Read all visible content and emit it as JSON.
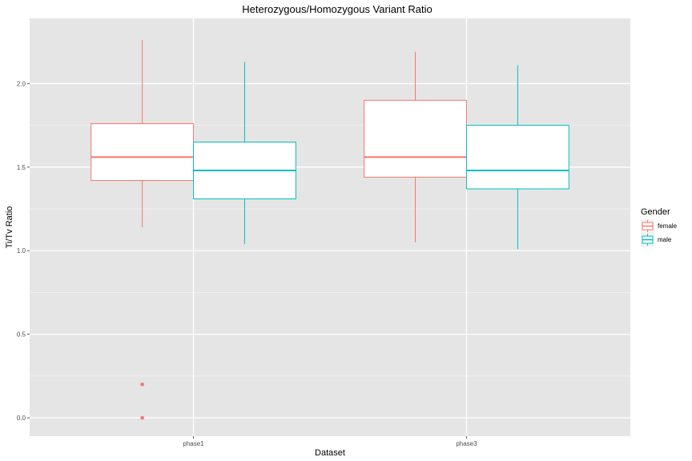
{
  "chart_data": {
    "type": "boxplot",
    "title": "Heterozygous/Homozygous Variant Ratio",
    "xlabel": "Dataset",
    "ylabel": "Ti/Tv Ratio",
    "categories": [
      "phase1",
      "phase3"
    ],
    "ylim": [
      -0.11,
      2.39
    ],
    "yticks": [
      0.0,
      0.5,
      1.0,
      1.5,
      2.0
    ],
    "ytick_labels": [
      "0.0",
      "0.5",
      "1.0",
      "1.5",
      "2.0"
    ],
    "grid": true,
    "legend": {
      "title": "Gender",
      "position": "right"
    },
    "series": [
      {
        "name": "female",
        "color": "#F8766D",
        "boxes": [
          {
            "category": "phase1",
            "min": 1.14,
            "q1": 1.42,
            "median": 1.56,
            "q3": 1.76,
            "max": 2.26,
            "outliers": [
              0.0,
              0.2
            ]
          },
          {
            "category": "phase3",
            "min": 1.05,
            "q1": 1.44,
            "median": 1.56,
            "q3": 1.9,
            "max": 2.19,
            "outliers": []
          }
        ]
      },
      {
        "name": "male",
        "color": "#00BFC4",
        "boxes": [
          {
            "category": "phase1",
            "min": 1.04,
            "q1": 1.31,
            "median": 1.48,
            "q3": 1.65,
            "max": 2.13,
            "outliers": []
          },
          {
            "category": "phase3",
            "min": 1.01,
            "q1": 1.37,
            "median": 1.48,
            "q3": 1.75,
            "max": 2.11,
            "outliers": []
          }
        ]
      }
    ]
  }
}
